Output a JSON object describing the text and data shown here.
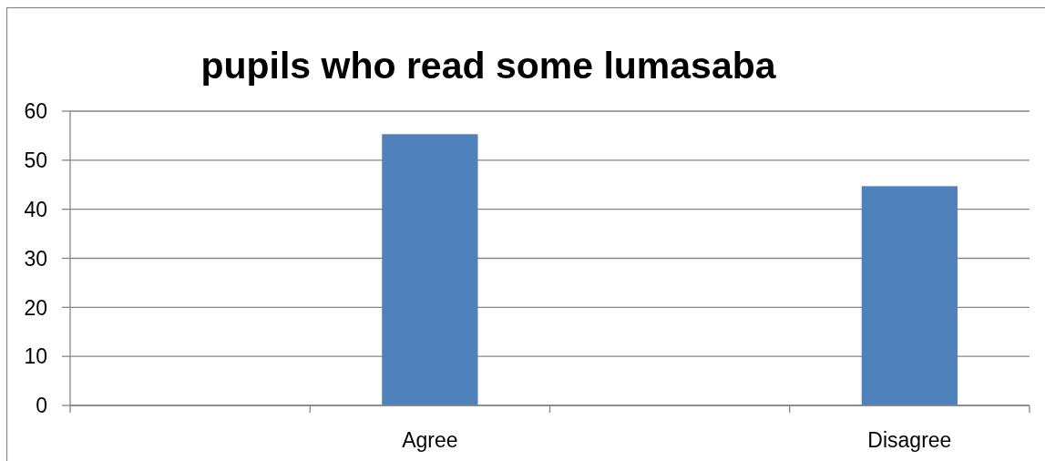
{
  "chart_data": {
    "type": "bar",
    "title": "pupils who read some lumasaba",
    "categories": [
      null,
      "Agree",
      null,
      "Disagree"
    ],
    "values": [
      null,
      55.3,
      null,
      44.7
    ],
    "color": "#4f81bd",
    "ylim": [
      0,
      60
    ],
    "yticks": [
      0,
      10,
      20,
      30,
      40,
      50,
      60
    ],
    "grid": "y"
  }
}
